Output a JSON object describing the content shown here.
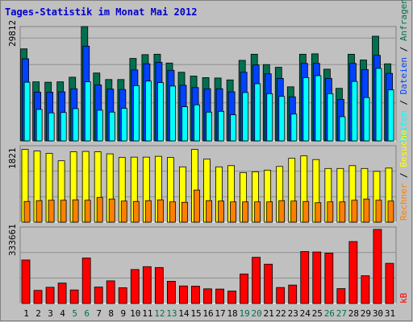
{
  "title": "Tages-Statistik im Monat Mai 2012",
  "days": [
    "1",
    "2",
    "3",
    "4",
    "5",
    "6",
    "7",
    "8",
    "9",
    "10",
    "11",
    "12",
    "13",
    "14",
    "15",
    "16",
    "17",
    "18",
    "19",
    "20",
    "21",
    "22",
    "23",
    "24",
    "25",
    "26",
    "27",
    "28",
    "29",
    "30",
    "31"
  ],
  "weekend_days": [
    "5",
    "6",
    "12",
    "13",
    "19",
    "20",
    "26",
    "27"
  ],
  "colors": {
    "background": "#c0c0c0",
    "title": "#0000cc",
    "hits": "#007050",
    "files": "#0042ff",
    "pages": "#00ffff",
    "visits": "#ffff00",
    "sites": "#ff8000",
    "kbytes": "#ff0000",
    "weekday_label": "#000000",
    "weekend_label": "#007050"
  },
  "chart_data": [
    {
      "type": "bar",
      "panel": "top",
      "y_axis_label": "29812",
      "ymax": 29812,
      "legend_top": [
        "Anfragen",
        "Dateien",
        "Seiten"
      ],
      "legend_separator": " / ",
      "series": [
        {
          "name": "Anfragen",
          "color": "#007050",
          "values": [
            24000,
            15400,
            15300,
            15400,
            16600,
            29812,
            17700,
            16000,
            16000,
            21500,
            22500,
            22600,
            20300,
            17900,
            16900,
            16500,
            16400,
            15900,
            21000,
            22600,
            19900,
            19200,
            14100,
            22600,
            22700,
            18700,
            13700,
            22600,
            21100,
            27300,
            20100
          ]
        },
        {
          "name": "Dateien",
          "color": "#0042ff",
          "values": [
            21400,
            12700,
            12700,
            12800,
            13600,
            24700,
            14600,
            13500,
            13400,
            18500,
            20100,
            20500,
            18400,
            14500,
            13900,
            13600,
            13600,
            12800,
            17900,
            19800,
            17500,
            16300,
            11500,
            20200,
            20200,
            16300,
            10800,
            20200,
            18600,
            22300,
            17600
          ]
        },
        {
          "name": "Seiten",
          "color": "#00ffff",
          "values": [
            15300,
            8200,
            7300,
            7400,
            8400,
            15400,
            8000,
            7500,
            8500,
            14400,
            15600,
            15200,
            14300,
            8900,
            9400,
            7500,
            7700,
            6800,
            12600,
            14900,
            12300,
            11600,
            7000,
            16500,
            17000,
            12300,
            6300,
            15500,
            11300,
            18900,
            13300
          ]
        }
      ]
    },
    {
      "type": "bar",
      "panel": "middle",
      "y_axis_label": "1821",
      "ymax": 1821,
      "legend_bottom": [
        "Besuche",
        "Rechner"
      ],
      "legend_separator": " / ",
      "series": [
        {
          "name": "Besuche",
          "color": "#ffff00",
          "values": [
            1790,
            1750,
            1690,
            1510,
            1730,
            1740,
            1730,
            1680,
            1590,
            1600,
            1600,
            1620,
            1590,
            1360,
            1790,
            1550,
            1360,
            1390,
            1220,
            1240,
            1280,
            1370,
            1570,
            1630,
            1540,
            1320,
            1320,
            1390,
            1320,
            1250,
            1330
          ]
        },
        {
          "name": "Rechner",
          "color": "#ff8000",
          "values": [
            510,
            530,
            540,
            540,
            550,
            540,
            610,
            570,
            520,
            510,
            530,
            550,
            500,
            490,
            790,
            530,
            520,
            500,
            500,
            500,
            500,
            530,
            520,
            510,
            480,
            500,
            500,
            540,
            570,
            540,
            520
          ]
        }
      ]
    },
    {
      "type": "bar",
      "panel": "bottom",
      "y_axis_label": "333661",
      "ymax": 333661,
      "legend_bottom": [
        "kB"
      ],
      "series": [
        {
          "name": "kB",
          "color": "#ff0000",
          "values": [
            196000,
            59000,
            73000,
            92000,
            61000,
            205000,
            74000,
            102000,
            71000,
            153000,
            166000,
            162000,
            100000,
            79000,
            78000,
            66000,
            65000,
            56000,
            133000,
            208000,
            177000,
            72000,
            83000,
            234000,
            232000,
            227000,
            67000,
            279000,
            125000,
            333661,
            181000
          ]
        }
      ]
    }
  ]
}
